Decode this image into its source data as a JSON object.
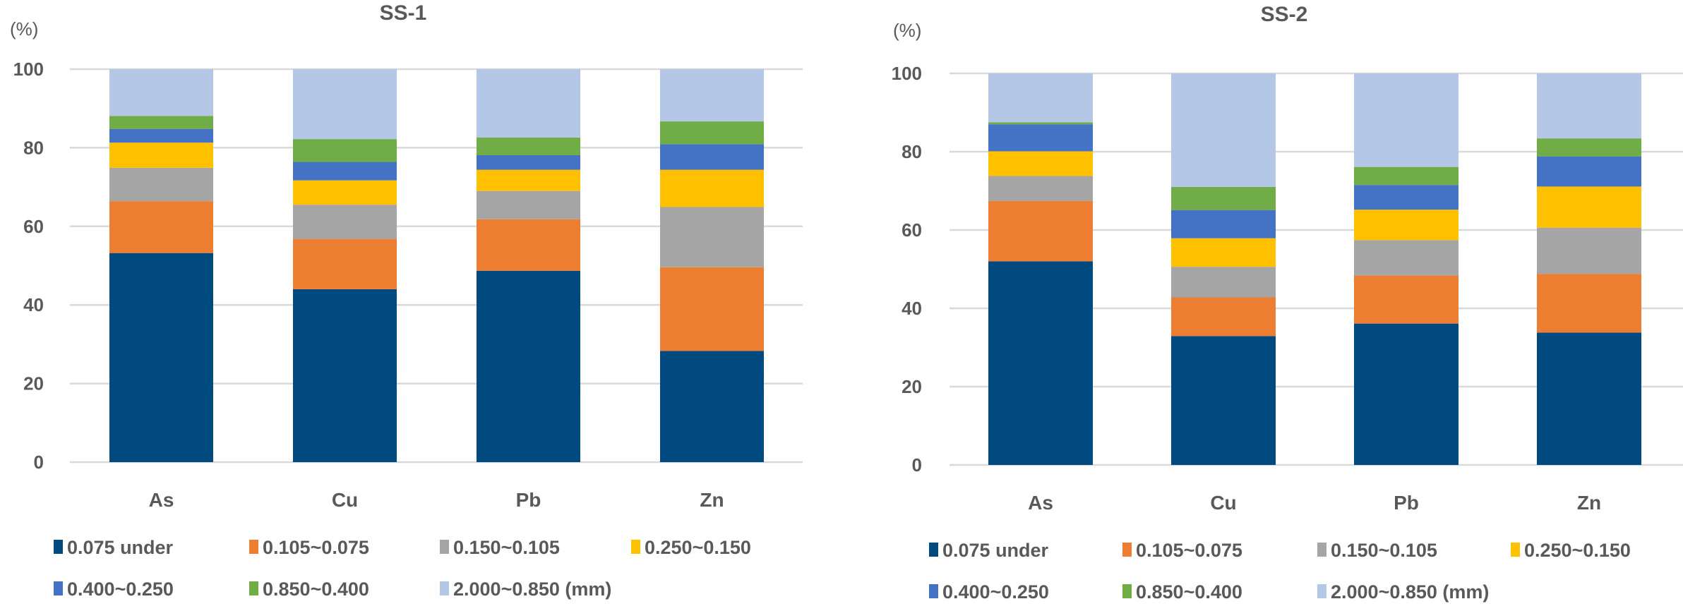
{
  "chart_data": [
    {
      "type": "bar",
      "stacked": true,
      "title": "SS-1",
      "ylabel": "(%)",
      "xlabel": "",
      "ylim": [
        0,
        100
      ],
      "yticks": [
        0,
        20,
        40,
        60,
        80,
        100
      ],
      "grid": true,
      "legend_position": "bottom",
      "categories": [
        "As",
        "Cu",
        "Pb",
        "Zn"
      ],
      "series": [
        {
          "name": "0.075 under",
          "color": "#004A80",
          "values": [
            53.2,
            44.0,
            48.7,
            28.3
          ]
        },
        {
          "name": "0.105~0.075",
          "color": "#ED7D31",
          "values": [
            13.2,
            12.8,
            13.1,
            21.3
          ]
        },
        {
          "name": "0.150~0.105",
          "color": "#A5A5A5",
          "values": [
            8.5,
            8.7,
            7.2,
            15.3
          ]
        },
        {
          "name": "0.250~0.150",
          "color": "#FFC000",
          "values": [
            6.4,
            6.2,
            5.4,
            9.5
          ]
        },
        {
          "name": "0.400~0.250",
          "color": "#4472C4",
          "values": [
            3.5,
            4.7,
            3.7,
            6.5
          ]
        },
        {
          "name": "0.850~0.400",
          "color": "#70AD47",
          "values": [
            3.3,
            5.8,
            4.5,
            5.8
          ]
        },
        {
          "name": "2.000~0.850 (mm)",
          "color": "#B4C7E7",
          "values": [
            11.9,
            17.8,
            17.4,
            13.3
          ]
        }
      ]
    },
    {
      "type": "bar",
      "stacked": true,
      "title": "SS-2",
      "ylabel": "(%)",
      "xlabel": "",
      "ylim": [
        0,
        100
      ],
      "yticks": [
        0,
        20,
        40,
        60,
        80,
        100
      ],
      "grid": true,
      "legend_position": "bottom",
      "categories": [
        "As",
        "Cu",
        "Pb",
        "Zn"
      ],
      "series": [
        {
          "name": "0.075 under",
          "color": "#004A80",
          "values": [
            52.0,
            32.9,
            36.1,
            33.8
          ]
        },
        {
          "name": "0.105~0.075",
          "color": "#ED7D31",
          "values": [
            15.4,
            9.9,
            12.3,
            15.0
          ]
        },
        {
          "name": "0.150~0.105",
          "color": "#A5A5A5",
          "values": [
            6.4,
            7.8,
            9.0,
            11.8
          ]
        },
        {
          "name": "0.250~0.150",
          "color": "#FFC000",
          "values": [
            6.3,
            7.3,
            7.8,
            10.5
          ]
        },
        {
          "name": "0.400~0.250",
          "color": "#4472C4",
          "values": [
            6.9,
            7.2,
            6.3,
            7.7
          ]
        },
        {
          "name": "0.850~0.400",
          "color": "#70AD47",
          "values": [
            0.5,
            5.9,
            4.6,
            4.6
          ]
        },
        {
          "name": "2.000~0.850 (mm)",
          "color": "#B4C7E7",
          "values": [
            12.5,
            29.0,
            23.9,
            16.6
          ]
        }
      ]
    }
  ]
}
